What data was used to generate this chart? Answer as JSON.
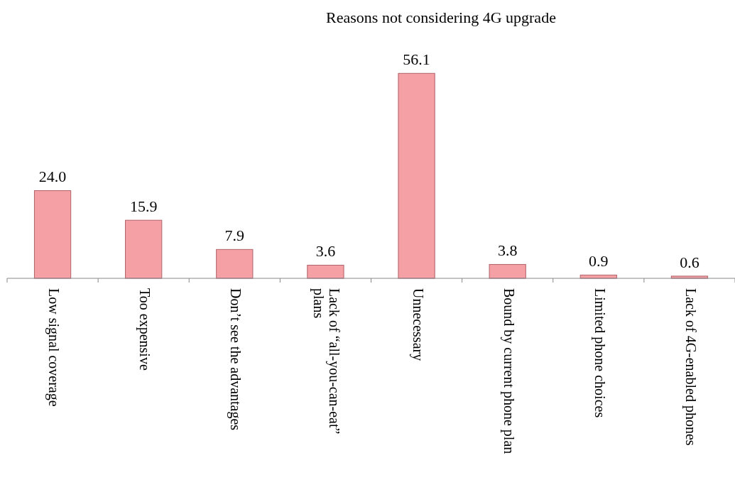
{
  "chart_data": {
    "type": "bar",
    "title": "Reasons not considering 4G upgrade",
    "categories": [
      "Low signal coverage",
      "Too expensive",
      "Don’t see the advantages",
      "Lack of “all-you-can-eat” plans",
      "Unnecessary",
      "Bound by current phone plan",
      "Limited phone choices",
      "Lack of 4G-enabled phones"
    ],
    "values": [
      24.0,
      15.9,
      7.9,
      3.6,
      56.1,
      3.8,
      0.9,
      0.6
    ],
    "value_labels": [
      "24.0",
      "15.9",
      "7.9",
      "3.6",
      "56.1",
      "3.8",
      "0.9",
      "0.6"
    ],
    "color": "#f4a0a4"
  }
}
